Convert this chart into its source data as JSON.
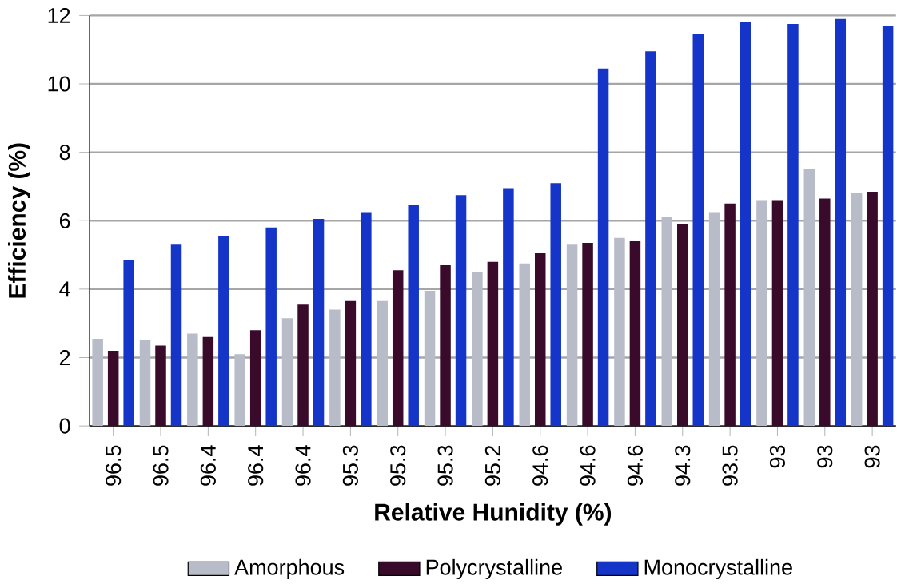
{
  "chart_data": {
    "type": "bar",
    "xlabel": "Relative Hunidity (%)",
    "ylabel": "Efficiency (%)",
    "categories": [
      "96.5",
      "96.5",
      "96.4",
      "96.4",
      "96.4",
      "95.3",
      "95.3",
      "95.3",
      "95.2",
      "94.6",
      "94.6",
      "94.6",
      "94.3",
      "93.5",
      "93",
      "93",
      "93"
    ],
    "series": [
      {
        "name": "Amorphous",
        "color": "#b8bcc8",
        "values": [
          2.55,
          2.5,
          2.7,
          2.1,
          3.15,
          3.4,
          3.65,
          3.95,
          4.5,
          4.75,
          5.3,
          5.5,
          6.1,
          6.25,
          6.6,
          7.5,
          6.8
        ]
      },
      {
        "name": "Polycrystalline",
        "color": "#3a0a2a",
        "values": [
          2.2,
          2.35,
          2.6,
          2.8,
          3.55,
          3.65,
          4.55,
          4.7,
          4.8,
          5.05,
          5.35,
          5.4,
          5.9,
          6.5,
          6.6,
          6.65,
          6.85
        ]
      },
      {
        "name": "Monocrystalline",
        "color": "#1535c8",
        "values": [
          4.85,
          5.3,
          5.55,
          5.8,
          6.05,
          6.25,
          6.45,
          6.75,
          6.95,
          7.1,
          10.45,
          10.95,
          11.45,
          11.8,
          11.75,
          11.9,
          11.7
        ]
      }
    ],
    "ylim": [
      0,
      12
    ],
    "yticks": [
      0,
      2,
      4,
      6,
      8,
      10,
      12
    ],
    "grid": "y",
    "legend": "bottom"
  }
}
